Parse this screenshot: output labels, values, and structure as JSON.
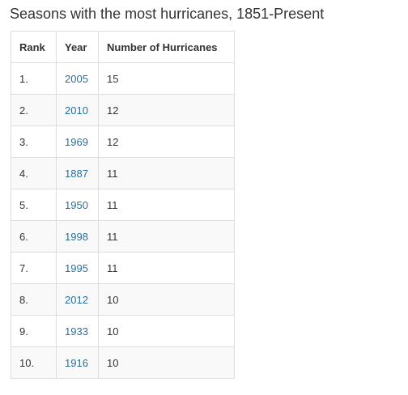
{
  "title": "Seasons with the most hurricanes, 1851-Present",
  "table": {
    "headers": [
      "Rank",
      "Year",
      "Number of Hurricanes"
    ],
    "rows": [
      {
        "rank": "1.",
        "year": "2005",
        "count": "15"
      },
      {
        "rank": "2.",
        "year": "2010",
        "count": "12"
      },
      {
        "rank": "3.",
        "year": "1969",
        "count": "12"
      },
      {
        "rank": "4.",
        "year": "1887",
        "count": "11"
      },
      {
        "rank": "5.",
        "year": "1950",
        "count": "11"
      },
      {
        "rank": "6.",
        "year": "1998",
        "count": "11"
      },
      {
        "rank": "7.",
        "year": "1995",
        "count": "11"
      },
      {
        "rank": "8.",
        "year": "2012",
        "count": "10"
      },
      {
        "rank": "9.",
        "year": "1933",
        "count": "10"
      },
      {
        "rank": "10.",
        "year": "1916",
        "count": "10"
      }
    ]
  },
  "colors": {
    "link": "#2a6f97",
    "text": "#333333",
    "border": "#dddddd",
    "stripe": "#f9f9f9"
  }
}
